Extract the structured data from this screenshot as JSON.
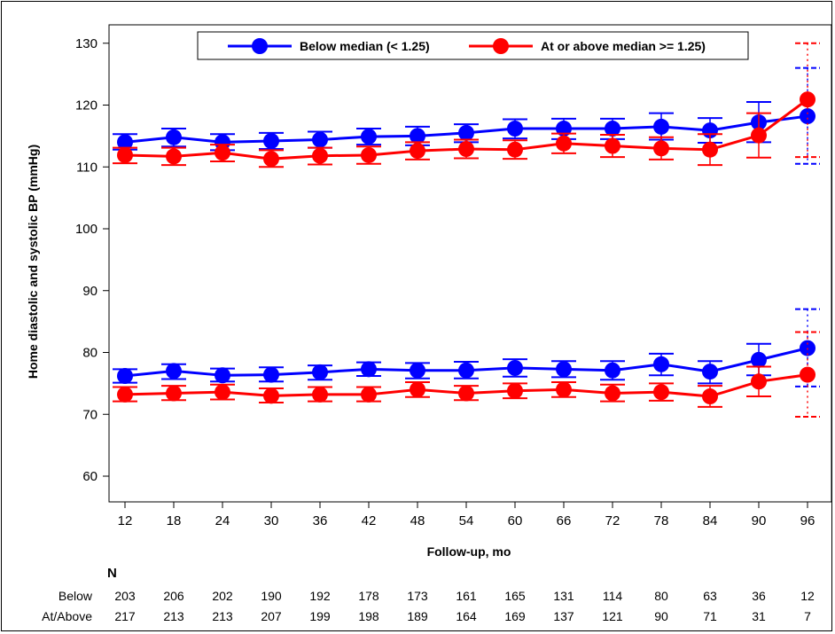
{
  "chart_data": {
    "type": "line",
    "ylabel": "Home diastolic and systolic BP (mmHg)",
    "xlabel": "Follow-up, mo",
    "ylim": [
      55,
      132
    ],
    "yticks": [
      60,
      70,
      80,
      90,
      100,
      110,
      120,
      130
    ],
    "x": [
      12,
      18,
      24,
      30,
      36,
      42,
      48,
      54,
      60,
      66,
      72,
      78,
      84,
      90,
      96
    ],
    "legend": {
      "placement": "top-right",
      "entries": [
        "Below median (< 1.25)",
        "At or above median >= 1.25)"
      ]
    },
    "series": [
      {
        "name": "Below median (< 1.25)",
        "group": "below",
        "measure": "systolic",
        "color": "#0000ff",
        "values": [
          114.0,
          114.8,
          114.0,
          114.2,
          114.4,
          114.9,
          115.0,
          115.5,
          116.2,
          116.2,
          116.2,
          116.5,
          115.9,
          117.2,
          118.2
        ],
        "lower": [
          112.8,
          113.3,
          112.7,
          112.9,
          113.1,
          113.6,
          113.5,
          114.0,
          114.6,
          114.5,
          114.5,
          114.4,
          113.9,
          114.0,
          110.5
        ],
        "upper": [
          115.3,
          116.2,
          115.3,
          115.5,
          115.7,
          116.2,
          116.5,
          116.9,
          117.7,
          117.8,
          117.8,
          118.7,
          117.9,
          120.5,
          126.0
        ]
      },
      {
        "name": "At or above median >= 1.25)",
        "group": "above",
        "measure": "systolic",
        "color": "#ff0000",
        "values": [
          111.9,
          111.7,
          112.3,
          111.3,
          111.8,
          111.9,
          112.6,
          112.9,
          112.8,
          113.8,
          113.4,
          113.0,
          112.8,
          115.1,
          120.9
        ],
        "lower": [
          110.6,
          110.3,
          110.9,
          110.0,
          110.4,
          110.5,
          111.2,
          111.4,
          111.3,
          112.2,
          111.6,
          111.2,
          110.3,
          111.5,
          111.6
        ],
        "upper": [
          113.1,
          113.1,
          113.6,
          112.7,
          113.1,
          113.3,
          114.0,
          114.4,
          114.3,
          115.4,
          115.2,
          114.8,
          115.3,
          118.7,
          130.0
        ]
      },
      {
        "name": "Below median (< 1.25)",
        "group": "below",
        "measure": "diastolic",
        "color": "#0000ff",
        "values": [
          76.2,
          77.0,
          76.3,
          76.4,
          76.8,
          77.3,
          77.1,
          77.1,
          77.5,
          77.3,
          77.1,
          78.1,
          76.9,
          78.8,
          80.7
        ],
        "lower": [
          75.1,
          75.7,
          75.3,
          75.3,
          75.6,
          76.2,
          75.8,
          75.8,
          76.1,
          76.0,
          75.6,
          76.3,
          75.0,
          76.3,
          74.5
        ],
        "upper": [
          77.3,
          78.1,
          77.4,
          77.6,
          77.9,
          78.4,
          78.3,
          78.5,
          78.9,
          78.6,
          78.6,
          79.8,
          78.6,
          81.4,
          87.0
        ]
      },
      {
        "name": "At or above median >= 1.25)",
        "group": "above",
        "measure": "diastolic",
        "color": "#ff0000",
        "values": [
          73.2,
          73.4,
          73.6,
          73.0,
          73.2,
          73.2,
          74.0,
          73.4,
          73.8,
          74.0,
          73.4,
          73.6,
          72.9,
          75.3,
          76.4
        ],
        "lower": [
          72.1,
          72.3,
          72.4,
          71.9,
          72.1,
          72.1,
          72.8,
          72.3,
          72.6,
          72.8,
          72.1,
          72.2,
          71.2,
          72.9,
          69.6
        ],
        "upper": [
          74.4,
          74.6,
          74.8,
          74.2,
          74.4,
          74.4,
          75.2,
          74.6,
          75.0,
          75.2,
          74.8,
          75.0,
          74.6,
          77.7,
          83.3
        ]
      }
    ],
    "n_table": {
      "header": "N",
      "rows": [
        {
          "label": "Below",
          "values": [
            "203",
            "206",
            "202",
            "190",
            "192",
            "178",
            "173",
            "161",
            "165",
            "131",
            "114",
            "80",
            "63",
            "36",
            "12"
          ]
        },
        {
          "label": "At/Above",
          "values": [
            "217",
            "213",
            "213",
            "207",
            "199",
            "198",
            "189",
            "164",
            "169",
            "137",
            "121",
            "90",
            "71",
            "31",
            "7"
          ]
        }
      ]
    }
  }
}
